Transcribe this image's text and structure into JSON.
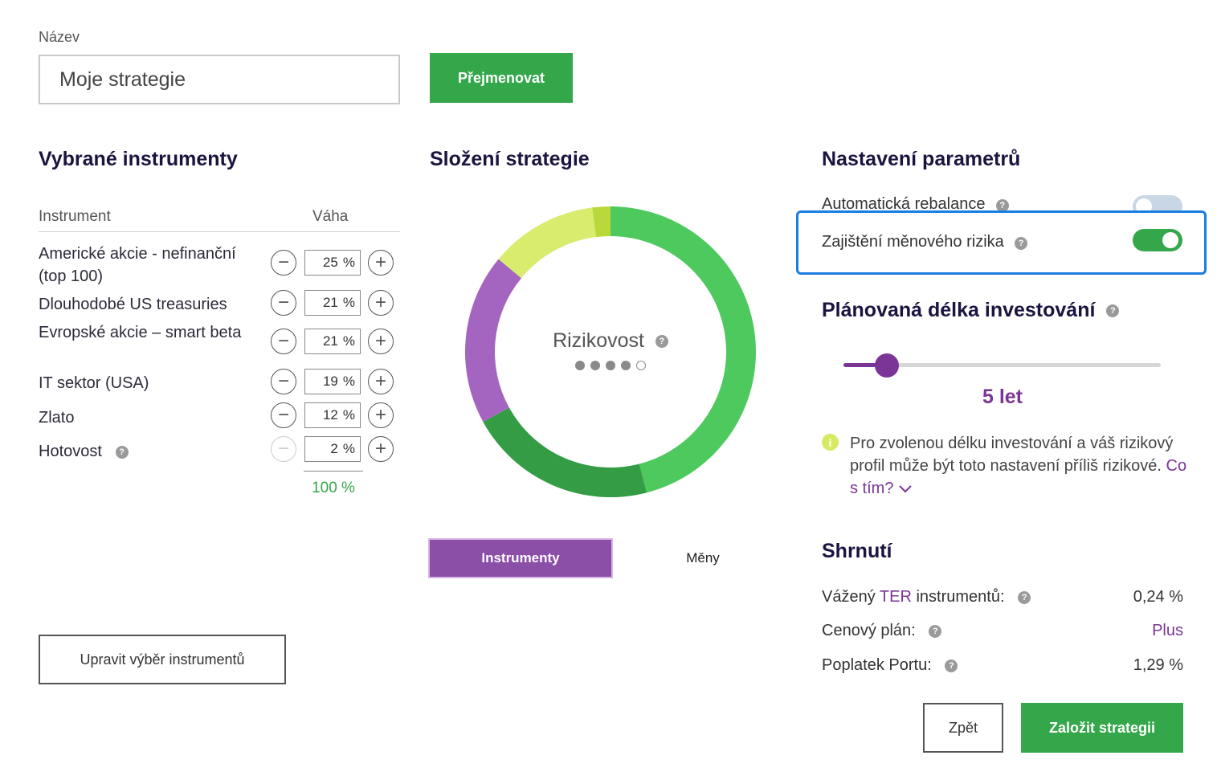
{
  "name_field": {
    "label": "Název",
    "value": "Moje strategie",
    "rename_button": "Přejmenovat"
  },
  "instruments": {
    "title": "Vybrané instrumenty",
    "col_instrument": "Instrument",
    "col_weight": "Váha",
    "rows": [
      {
        "name": "Americké akcie - nefinanční (top 100)",
        "weight": "25",
        "unit": "%"
      },
      {
        "name": "Dlouhodobé US treasuries",
        "weight": "21",
        "unit": "%"
      },
      {
        "name": "Evropské akcie – smart beta",
        "weight": "21",
        "unit": "%"
      },
      {
        "name": "IT sektor (USA)",
        "weight": "19",
        "unit": "%"
      },
      {
        "name": "Zlato",
        "weight": "12",
        "unit": "%"
      },
      {
        "name": "Hotovost",
        "weight": "2",
        "unit": "%"
      }
    ],
    "total": "100 %",
    "edit_button": "Upravit výběr instrumentů",
    "minus_symbol": "−",
    "plus_symbol": "+",
    "help_symbol": "?"
  },
  "composition": {
    "title": "Složení strategie",
    "center_label": "Rizikovost",
    "risk_level": 4,
    "risk_max": 5,
    "tab_instruments": "Instrumenty",
    "tab_currencies": "Měny",
    "segments": [
      {
        "value": 25,
        "color": "#4ec95d"
      },
      {
        "value": 21,
        "color": "#4ec95d"
      },
      {
        "value": 21,
        "color": "#339c44"
      },
      {
        "value": 19,
        "color": "#a365bf"
      },
      {
        "value": 12,
        "color": "#d9ec6e"
      },
      {
        "value": 2,
        "color": "#b8d83c"
      }
    ]
  },
  "parameters": {
    "title": "Nastavení parametrů",
    "auto_rebalance": "Automatická rebalance",
    "currency_hedge": "Zajištění měnového rizika",
    "horizon_title": "Plánovaná délka investování",
    "horizon_value": "5 let",
    "horizon_fraction": 0.14,
    "info_icon": "i",
    "warning_text": "Pro zvolenou délku investování a váš rizikový profil může být toto nastavení příliš rizikové.",
    "warning_link": "Co s tím?"
  },
  "summary": {
    "title": "Shrnutí",
    "ter_label_prefix": "Vážený ",
    "ter_label_term": "TER",
    "ter_label_suffix": " instrumentů:",
    "ter_value": "0,24 %",
    "plan_label": "Cenový plán:",
    "plan_value": "Plus",
    "fee_label": "Poplatek Portu:",
    "fee_value": "1,29 %",
    "back_button": "Zpět",
    "create_button": "Založit strategii"
  },
  "colors": {
    "accent_green": "#34a74a",
    "accent_purple": "#7b3596",
    "focus_blue": "#1a7de0"
  }
}
